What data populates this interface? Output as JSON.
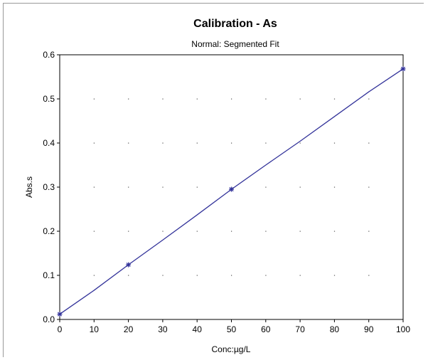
{
  "chart_data": {
    "type": "scatter",
    "title": "Calibration - As",
    "subtitle": "Normal: Segmented Fit",
    "xlabel": "Conc:µg/L",
    "ylabel": "Abs.s",
    "xlim": [
      0,
      100
    ],
    "ylim": [
      0.0,
      0.6
    ],
    "x_ticks": [
      "0",
      "10",
      "20",
      "30",
      "40",
      "50",
      "60",
      "70",
      "80",
      "90",
      "100"
    ],
    "y_ticks": [
      "0.0",
      "0.1",
      "0.2",
      "0.3",
      "0.4",
      "0.5",
      "0.6"
    ],
    "grid": "dotted",
    "series": [
      {
        "kind": "points",
        "marker": "asterisk",
        "x": [
          0,
          20,
          50,
          100
        ],
        "y": [
          0.012,
          0.124,
          0.295,
          0.568
        ]
      },
      {
        "kind": "fit-line",
        "x": [
          0,
          10,
          20,
          30,
          40,
          50,
          60,
          70,
          80,
          90,
          100
        ],
        "y": [
          0.012,
          0.066,
          0.124,
          0.18,
          0.237,
          0.295,
          0.35,
          0.404,
          0.46,
          0.516,
          0.568
        ]
      }
    ],
    "colors": {
      "series": "#33339a",
      "axis": "#000000",
      "grid": "#555555"
    }
  }
}
